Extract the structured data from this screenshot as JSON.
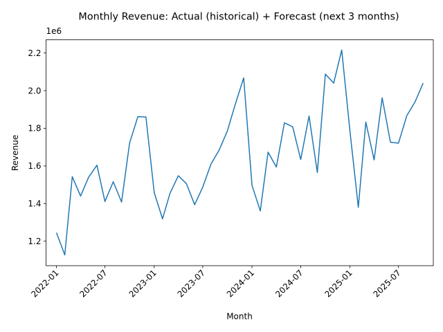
{
  "chart_data": {
    "type": "line",
    "title": "Monthly Revenue: Actual (historical) + Forecast (next 3 months)",
    "xlabel": "Month",
    "ylabel": "Revenue",
    "y_scale_label": "1e6",
    "y_multiplier": 1000000,
    "ylim": [
      1.07,
      2.27
    ],
    "xlim": [
      "2021-11-23",
      "2025-11-08"
    ],
    "y_ticks": [
      1.2,
      1.4,
      1.6,
      1.8,
      2.0,
      2.2
    ],
    "y_tick_labels": [
      "1.2",
      "1.4",
      "1.6",
      "1.8",
      "2.0",
      "2.2"
    ],
    "x_ticks": [
      "2022-01",
      "2022-07",
      "2023-01",
      "2023-07",
      "2024-01",
      "2024-07",
      "2025-01",
      "2025-07"
    ],
    "grid": false,
    "legend": "none",
    "line_color": "#1f77b4",
    "x": [
      "2022-01",
      "2022-02",
      "2022-03",
      "2022-04",
      "2022-05",
      "2022-06",
      "2022-07",
      "2022-08",
      "2022-09",
      "2022-10",
      "2022-11",
      "2022-12",
      "2023-01",
      "2023-02",
      "2023-03",
      "2023-04",
      "2023-05",
      "2023-06",
      "2023-07",
      "2023-08",
      "2023-09",
      "2023-10",
      "2023-11",
      "2023-12",
      "2024-01",
      "2024-02",
      "2024-03",
      "2024-04",
      "2024-05",
      "2024-06",
      "2024-07",
      "2024-08",
      "2024-09",
      "2024-10",
      "2024-11",
      "2024-12",
      "2025-01",
      "2025-02",
      "2025-03",
      "2025-04",
      "2025-05",
      "2025-06",
      "2025-07",
      "2025-08",
      "2025-09",
      "2025-10"
    ],
    "series": [
      {
        "values": [
          1.245,
          1.127,
          1.543,
          1.44,
          1.54,
          1.604,
          1.411,
          1.516,
          1.408,
          1.722,
          1.862,
          1.86,
          1.458,
          1.319,
          1.455,
          1.548,
          1.506,
          1.394,
          1.487,
          1.61,
          1.686,
          1.786,
          1.934,
          2.068,
          1.497,
          1.361,
          1.673,
          1.594,
          1.829,
          1.808,
          1.634,
          1.865,
          1.565,
          2.088,
          2.04,
          2.216,
          1.782,
          1.38,
          1.833,
          1.632,
          1.962,
          1.726,
          1.721,
          1.867,
          1.941,
          2.04
        ]
      }
    ]
  }
}
